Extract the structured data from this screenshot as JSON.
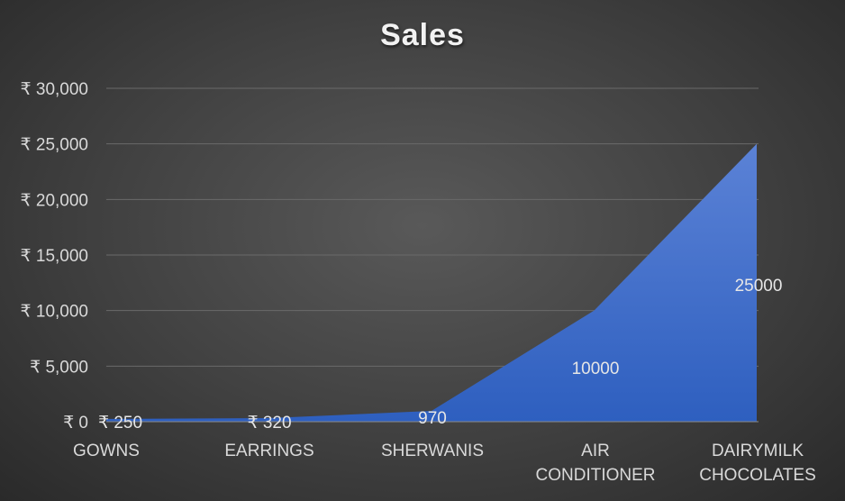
{
  "chart_data": {
    "type": "area",
    "title": "Sales",
    "categories": [
      "GOWNS",
      "EARRINGS",
      "SHERWANIS",
      "AIR CONDITIONER",
      "DAIRYMILK CHOCOLATES"
    ],
    "category_lines": [
      [
        "GOWNS"
      ],
      [
        "EARRINGS"
      ],
      [
        "SHERWANIS"
      ],
      [
        "AIR",
        "CONDITIONER"
      ],
      [
        "DAIRYMILK",
        "CHOCOLATES"
      ]
    ],
    "values": [
      250,
      320,
      970,
      10000,
      25000
    ],
    "data_labels": [
      "₹ 250",
      "₹ 320",
      "970",
      "10000",
      "25000"
    ],
    "ylim": [
      0,
      30000
    ],
    "y_ticks": [
      0,
      5000,
      10000,
      15000,
      20000,
      25000,
      30000
    ],
    "y_tick_labels": [
      "₹ 0",
      "₹ 5,000",
      "₹ 10,000",
      "₹ 15,000",
      "₹ 20,000",
      "₹ 25,000",
      "₹ 30,000"
    ],
    "grid": true,
    "legend": "none",
    "colors": {
      "fill_top": "#5b82d6",
      "fill_bottom": "#2e5fbf",
      "background": "#404040"
    }
  }
}
